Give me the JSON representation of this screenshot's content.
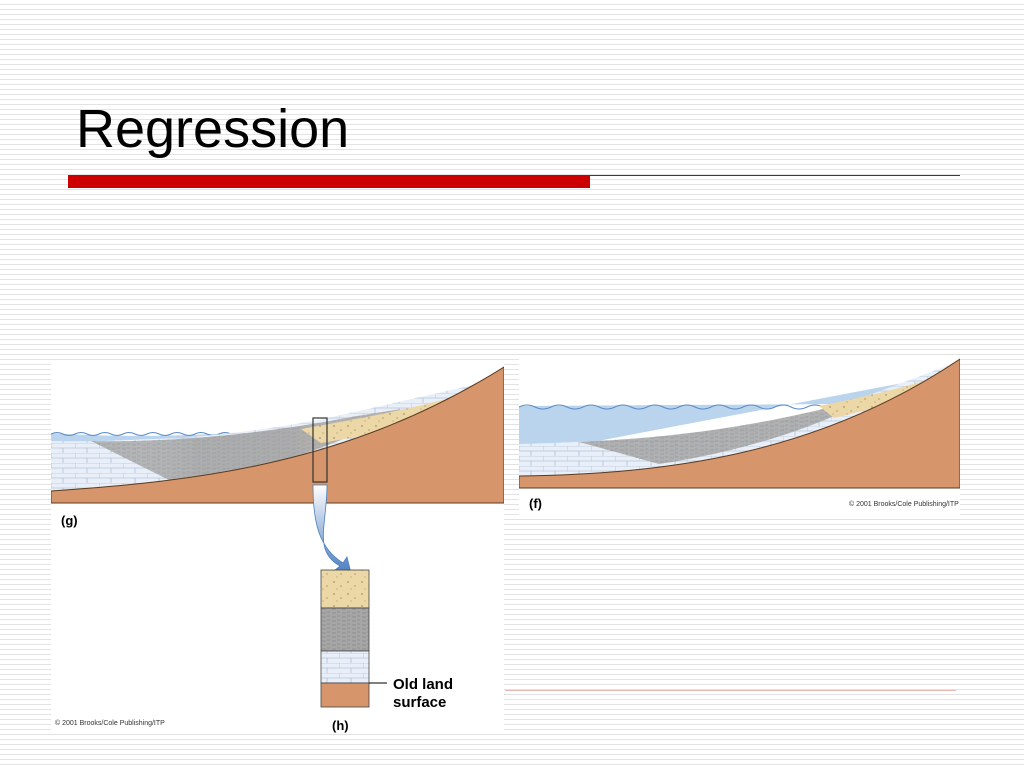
{
  "slide": {
    "title": "Regression",
    "accent_color": "#cc0000"
  },
  "colors": {
    "water": "#b9d4ec",
    "water_line": "#5a8ac6",
    "sand": "#ecd7a6",
    "shale": "#a6a6a6",
    "limestone": "#e9eff9",
    "bedrock": "#d6956a",
    "arrow": "#4d7fc0"
  },
  "figure_g": {
    "label": "(g)",
    "copyright": "© 2001 Brooks/Cole Publishing/ITP"
  },
  "figure_h": {
    "label": "(h)",
    "annotation_line1": "Old land",
    "annotation_line2": "surface"
  },
  "figure_f": {
    "label": "(f)",
    "copyright": "© 2001 Brooks/Cole Publishing/ITP"
  }
}
